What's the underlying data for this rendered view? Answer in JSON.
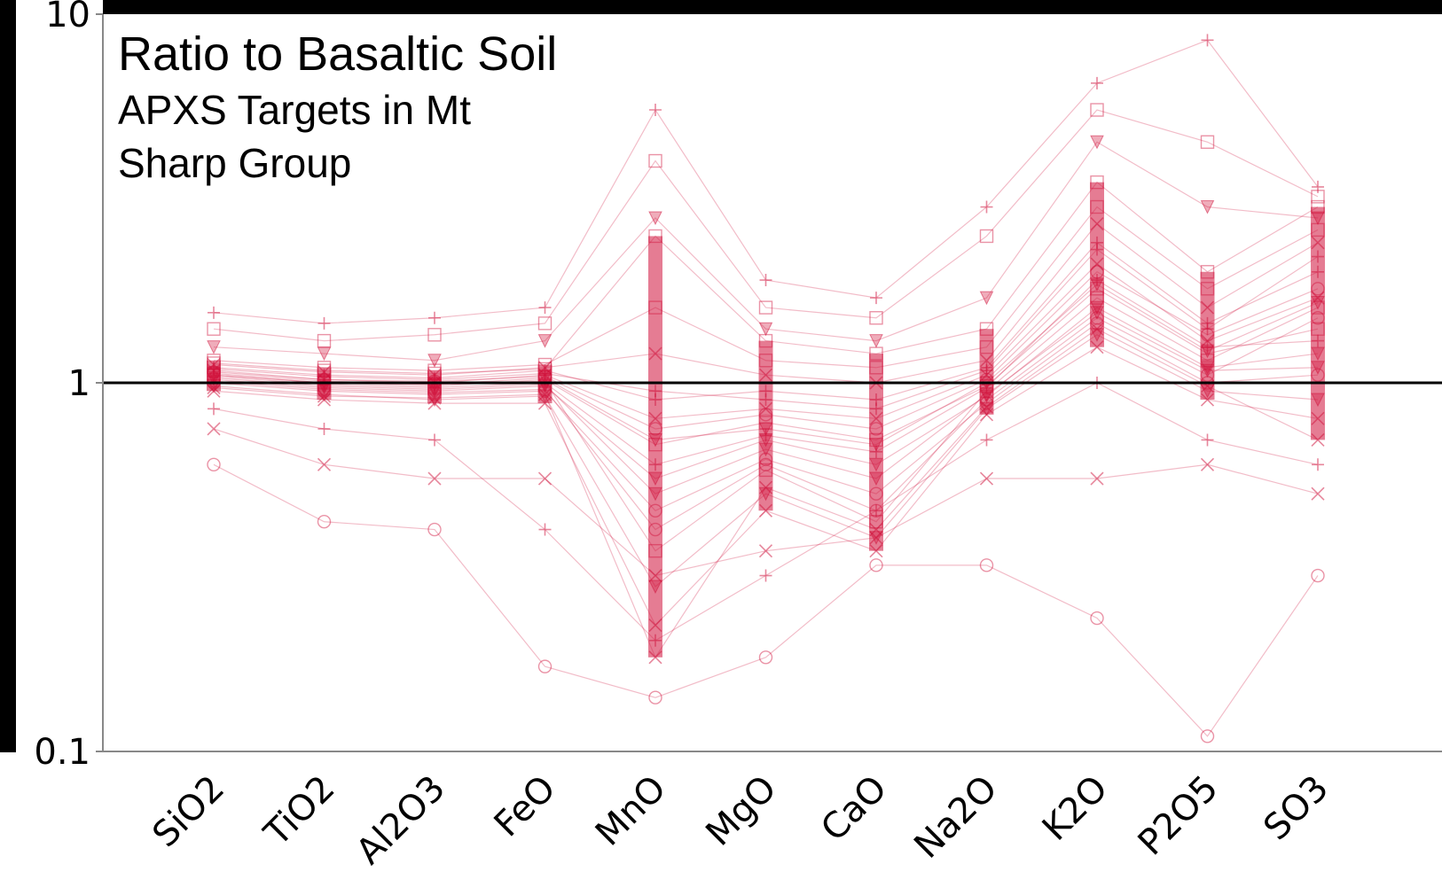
{
  "chart_data": {
    "type": "line",
    "title": "Ratio to Basaltic Soil",
    "subtitle": "APXS Targets in Mt Sharp Group",
    "xlabel": "",
    "ylabel": "",
    "y_scale": "log",
    "ylim": [
      0.1,
      10
    ],
    "y_ticks": [
      "0.1",
      "1",
      "10"
    ],
    "categories": [
      "SiO2",
      "TiO2",
      "Al2O3",
      "FeO",
      "MnO",
      "MgO",
      "CaO",
      "Na2O",
      "K2O",
      "P2O5",
      "SO3"
    ],
    "reference_line": {
      "value": 1,
      "color": "#000000"
    },
    "series_color": "#d0103a",
    "grid": false,
    "legend": "none",
    "series": [
      {
        "values": [
          1.05,
          1.0,
          0.98,
          1.02,
          0.68,
          0.78,
          0.7,
          0.98,
          1.8,
          1.2,
          1.4
        ]
      },
      {
        "values": [
          1.08,
          1.02,
          1.0,
          1.05,
          0.8,
          0.85,
          0.8,
          1.05,
          2.1,
          1.3,
          1.7
        ]
      },
      {
        "values": [
          1.02,
          0.97,
          0.95,
          0.98,
          0.55,
          0.7,
          0.6,
          0.92,
          1.6,
          1.1,
          1.2
        ]
      },
      {
        "values": [
          1.1,
          1.05,
          1.03,
          1.08,
          0.9,
          0.95,
          0.9,
          1.1,
          2.4,
          1.45,
          2.0
        ]
      },
      {
        "values": [
          1.0,
          0.95,
          0.93,
          0.95,
          0.45,
          0.62,
          0.5,
          0.88,
          1.45,
          1.0,
          1.05
        ]
      },
      {
        "values": [
          1.06,
          1.01,
          0.99,
          1.01,
          0.35,
          0.58,
          0.42,
          0.95,
          1.7,
          1.15,
          1.6
        ]
      },
      {
        "values": [
          1.12,
          1.07,
          1.05,
          1.1,
          1.2,
          1.05,
          1.0,
          1.15,
          2.7,
          1.6,
          2.4
        ]
      },
      {
        "values": [
          0.98,
          0.93,
          0.9,
          0.92,
          0.28,
          0.5,
          0.38,
          0.85,
          1.35,
          0.95,
          0.9
        ]
      },
      {
        "values": [
          1.04,
          0.99,
          0.97,
          1.0,
          0.6,
          0.72,
          0.65,
          0.97,
          1.9,
          1.25,
          1.3
        ]
      },
      {
        "values": [
          1.07,
          1.02,
          1.01,
          1.04,
          0.75,
          0.82,
          0.75,
          1.02,
          2.0,
          1.35,
          1.8
        ]
      },
      {
        "values": [
          1.15,
          1.1,
          1.08,
          1.12,
          1.6,
          1.15,
          1.1,
          1.25,
          3.0,
          1.8,
          2.6
        ]
      },
      {
        "values": [
          0.95,
          0.9,
          0.88,
          0.88,
          0.22,
          0.45,
          0.35,
          0.82,
          1.25,
          0.9,
          0.8
        ]
      },
      {
        "values": [
          1.03,
          0.98,
          0.96,
          0.99,
          0.5,
          0.66,
          0.55,
          0.93,
          1.55,
          1.08,
          1.1
        ]
      },
      {
        "values": [
          1.09,
          1.04,
          1.02,
          1.06,
          0.95,
          0.9,
          0.85,
          1.08,
          2.3,
          1.4,
          2.2
        ]
      },
      {
        "values": [
          1.01,
          0.96,
          0.94,
          0.96,
          0.4,
          0.6,
          0.45,
          0.9,
          1.5,
          1.05,
          1.5
        ]
      },
      {
        "values": [
          1.13,
          1.08,
          1.06,
          1.09,
          2.5,
          1.3,
          1.2,
          1.4,
          3.5,
          2.0,
          3.0
        ]
      },
      {
        "values": [
          0.97,
          0.92,
          0.91,
          0.93,
          0.18,
          0.52,
          0.4,
          0.86,
          1.4,
          0.98,
          0.7
        ]
      },
      {
        "values": [
          1.05,
          1.0,
          0.99,
          1.03,
          0.7,
          0.75,
          0.68,
          1.0,
          1.85,
          1.22,
          1.65
        ]
      },
      {
        "values": [
          1.55,
          1.45,
          1.5,
          1.6,
          5.5,
          1.9,
          1.7,
          3.0,
          6.5,
          8.5,
          3.4
        ]
      },
      {
        "values": [
          0.6,
          0.42,
          0.4,
          0.17,
          0.14,
          0.18,
          0.32,
          0.32,
          0.23,
          0.11,
          0.3
        ]
      },
      {
        "values": [
          1.4,
          1.3,
          1.35,
          1.45,
          4.0,
          1.6,
          1.5,
          2.5,
          5.5,
          4.5,
          3.2
        ]
      },
      {
        "values": [
          0.75,
          0.6,
          0.55,
          0.55,
          0.3,
          0.35,
          0.38,
          0.55,
          0.55,
          0.6,
          0.5
        ]
      },
      {
        "values": [
          1.25,
          1.2,
          1.15,
          1.3,
          2.8,
          1.4,
          1.3,
          1.7,
          4.5,
          3.0,
          2.8
        ]
      },
      {
        "values": [
          0.85,
          0.75,
          0.7,
          0.4,
          0.2,
          0.3,
          0.45,
          0.7,
          1.0,
          0.7,
          0.6
        ]
      }
    ]
  }
}
